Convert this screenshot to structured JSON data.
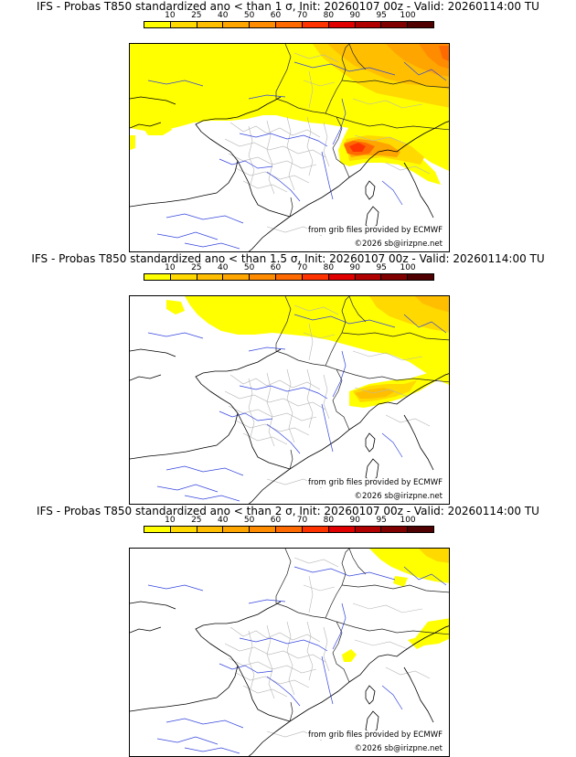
{
  "color_scale": {
    "ticks": [
      "10",
      "25",
      "40",
      "50",
      "60",
      "70",
      "80",
      "90",
      "95",
      "100"
    ],
    "colors": [
      "#ffff00",
      "#ffd900",
      "#ffbf00",
      "#ffa500",
      "#ff8c00",
      "#ff6a00",
      "#ff3300",
      "#e00000",
      "#b00000",
      "#800000",
      "#500000"
    ]
  },
  "panels": [
    {
      "title": "IFS - Probas T850  standardized ano < than 1 σ, Init: 20260107 00z - Valid: 20260114:00 TU",
      "source_credit": "from grib files provided by ECMWF",
      "copyright": "©2026 sb@irizpne.net",
      "coverage": "high"
    },
    {
      "title": "IFS - Probas T850  standardized ano < than 1.5 σ, Init: 20260107 00z - Valid: 20260114:00 TU",
      "source_credit": "from grib files provided by ECMWF",
      "copyright": "©2026 sb@irizpne.net",
      "coverage": "medium"
    },
    {
      "title": "IFS - Probas T850  standardized ano < than 2 σ, Init: 20260107 00z - Valid: 20260114:00 TU",
      "source_credit": "from grib files provided by ECMWF",
      "copyright": "©2026 sb@irizpne.net",
      "coverage": "low"
    }
  ]
}
